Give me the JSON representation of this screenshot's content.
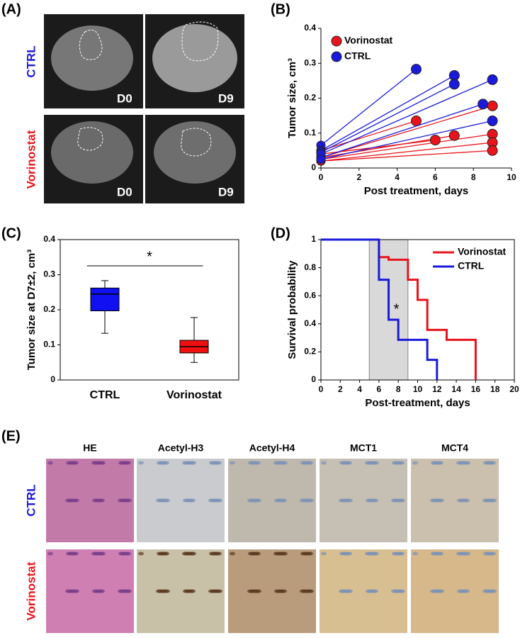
{
  "figure_labels": [
    "(A)",
    "(B)",
    "(C)",
    "(D)",
    "(E)"
  ],
  "panel_a": {
    "rows": [
      "CTRL",
      "Vorinostat"
    ],
    "timepoints": [
      "D0",
      "D9"
    ]
  },
  "panel_e": {
    "columns": [
      "HE",
      "Acetyl-H3",
      "Acetyl-H4",
      "MCT1",
      "MCT4"
    ],
    "rows": [
      "CTRL",
      "Vorinostat"
    ]
  },
  "chart_data": [
    {
      "type": "paired-scatter",
      "x_label": "Post treatment, days",
      "y_label": "Tumor size, cm³",
      "xlim": [
        0,
        10
      ],
      "xticks": [
        0,
        2,
        4,
        6,
        8,
        10
      ],
      "ylim": [
        0,
        0.4
      ],
      "yticks": [
        0,
        0.1,
        0.2,
        0.3,
        0.4
      ],
      "legend": "upper left",
      "series": [
        {
          "name": "Vorinostat",
          "color": "#e8141b",
          "x0": [
            0,
            0,
            0,
            0,
            0,
            0,
            0
          ],
          "y0": [
            0.05,
            0.04,
            0.03,
            0.03,
            0.025,
            0.02,
            0.02
          ],
          "x1": [
            5,
            6,
            7,
            9,
            9,
            9,
            9
          ],
          "y1": [
            0.135,
            0.08,
            0.093,
            0.178,
            0.097,
            0.073,
            0.05
          ]
        },
        {
          "name": "CTRL",
          "color": "#1a1adb",
          "x0": [
            0,
            0,
            0,
            0,
            0,
            0
          ],
          "y0": [
            0.065,
            0.05,
            0.045,
            0.03,
            0.04,
            0.025
          ],
          "x1": [
            5,
            7,
            7,
            8.5,
            9,
            9
          ],
          "y1": [
            0.283,
            0.265,
            0.24,
            0.183,
            0.253,
            0.135
          ]
        }
      ]
    },
    {
      "type": "box",
      "y_label": "Tumor size at D7±2, cm³",
      "annotations": [
        "*"
      ],
      "ylim": [
        0,
        0.4
      ],
      "yticks": [
        0,
        0.1,
        0.2,
        0.3,
        0.4
      ],
      "categories": [
        "CTRL",
        "Vorinostat"
      ],
      "colors": [
        "#1010f0",
        "#f01010"
      ],
      "min": [
        0.133,
        0.05
      ],
      "q1": [
        0.197,
        0.077
      ],
      "median": [
        0.245,
        0.095
      ],
      "q3": [
        0.262,
        0.113
      ],
      "max": [
        0.283,
        0.178
      ]
    },
    {
      "type": "step",
      "x_label": "Post-treatment,  days",
      "y_label": "Survival probability",
      "annotations": [
        "*"
      ],
      "xlim": [
        0,
        20
      ],
      "xticks": [
        0,
        2,
        4,
        6,
        8,
        10,
        12,
        14,
        16,
        18,
        20
      ],
      "ylim": [
        0,
        1
      ],
      "yticks": [
        0,
        0.2,
        0.4,
        0.6,
        0.8,
        1
      ],
      "shade": [
        5,
        9
      ],
      "legend": "upper right",
      "series": [
        {
          "name": "Vorinostat",
          "color": "#e8141b",
          "x": [
            0,
            6,
            7,
            9,
            10,
            11,
            13,
            16
          ],
          "values": [
            1,
            0.875,
            0.857,
            0.714,
            0.571,
            0.357,
            0.286,
            0
          ]
        },
        {
          "name": "CTRL",
          "color": "#1a1adb",
          "x": [
            0,
            6,
            7,
            8,
            11,
            12
          ],
          "values": [
            1,
            0.714,
            0.429,
            0.286,
            0.143,
            0
          ]
        }
      ]
    }
  ]
}
